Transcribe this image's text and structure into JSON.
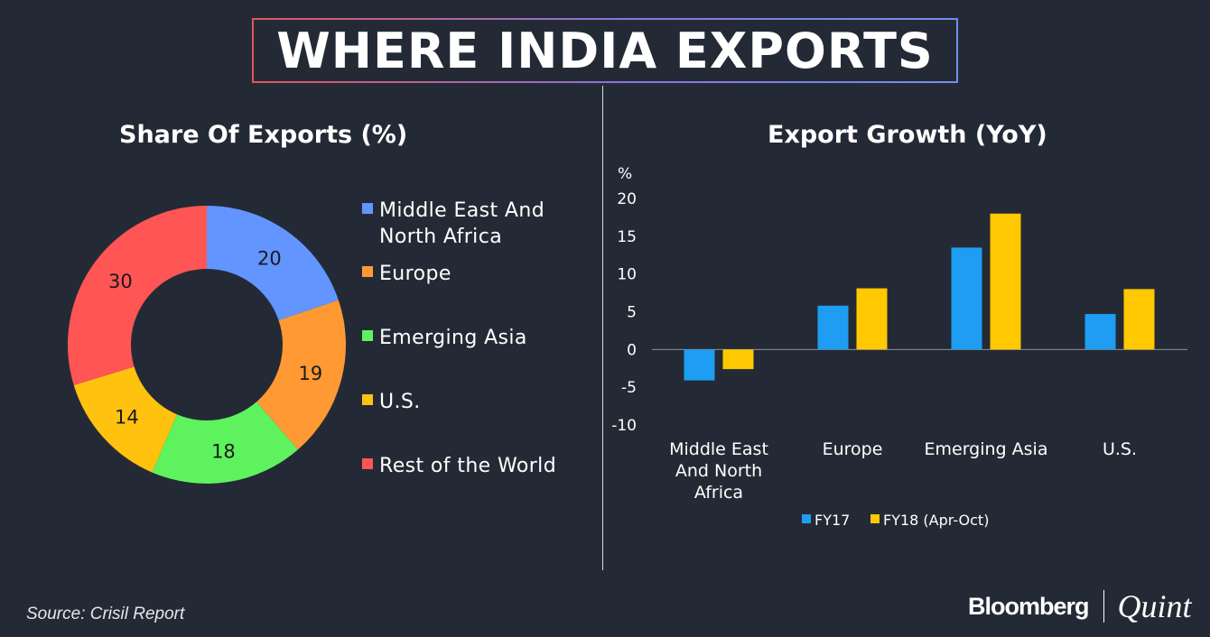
{
  "header": {
    "title": "WHERE INDIA EXPORTS"
  },
  "footer": {
    "source": "Source: Crisil Report",
    "brand_left": "Bloomberg",
    "brand_right": "Quint"
  },
  "colors": {
    "blue": "#6295ff",
    "orange": "#ff9933",
    "green": "#5ff25f",
    "yellow": "#ffc20e",
    "red": "#ff5555",
    "bar_blue": "#1e9df2",
    "bar_yellow": "#ffc800"
  },
  "chart_data": [
    {
      "type": "pie",
      "title": "Share Of Exports (%)",
      "donut": true,
      "slices": [
        {
          "label": "Middle East And North Africa",
          "label_lines": [
            "Middle East And",
            "North Africa"
          ],
          "value": 20,
          "color": "#6295ff"
        },
        {
          "label": "Europe",
          "label_lines": [
            "Europe"
          ],
          "value": 19,
          "color": "#ff9933"
        },
        {
          "label": "Emerging Asia",
          "label_lines": [
            "Emerging Asia"
          ],
          "value": 18,
          "color": "#5ff25f"
        },
        {
          "label": "U.S.",
          "label_lines": [
            "U.S."
          ],
          "value": 14,
          "color": "#ffc20e"
        },
        {
          "label": "Rest of the World",
          "label_lines": [
            "Rest of the World"
          ],
          "value": 30,
          "color": "#ff5555"
        }
      ],
      "legend": "right"
    },
    {
      "type": "bar",
      "title": "Export Growth (YoY)",
      "ylabel": "%",
      "ylim": [
        -10,
        20
      ],
      "yticks": [
        20,
        15,
        10,
        5,
        0,
        -5,
        -10
      ],
      "categories": [
        "Middle East And North Africa",
        "Europe",
        "Emerging Asia",
        "U.S."
      ],
      "category_lines": [
        [
          "Middle East",
          "And North",
          "Africa"
        ],
        [
          "Europe"
        ],
        [
          "Emerging Asia"
        ],
        [
          "U.S."
        ]
      ],
      "series": [
        {
          "name": "FY17",
          "values": [
            -4.1,
            5.8,
            13.5,
            4.7
          ],
          "color": "#1e9df2"
        },
        {
          "name": "FY18 (Apr-Oct)",
          "values": [
            -2.6,
            8.1,
            18,
            8.0
          ],
          "color": "#ffc800"
        }
      ],
      "legend": "bottom"
    }
  ]
}
